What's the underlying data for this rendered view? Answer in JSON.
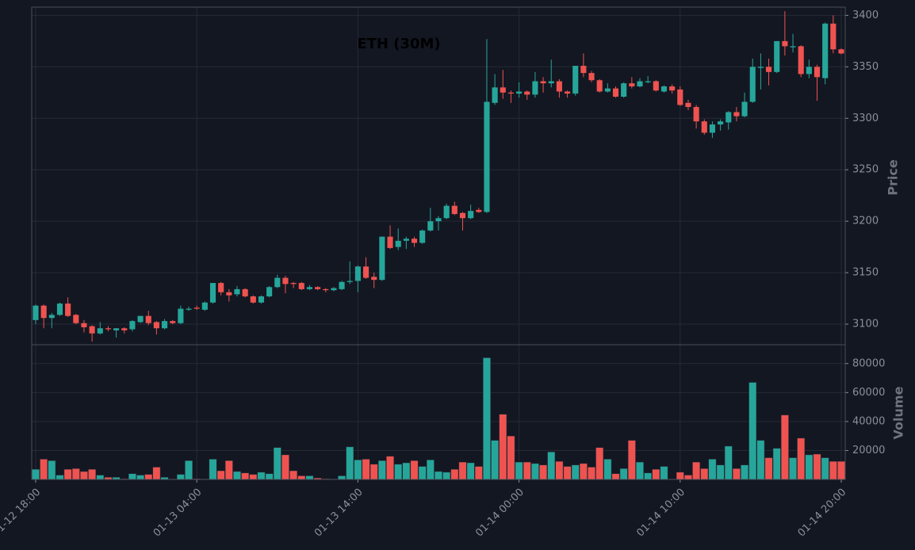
{
  "chart_data": {
    "type": "candlestick",
    "title": "ETH (30M)",
    "ylabel": "Price",
    "volume_ylabel": "Volume",
    "categories": [
      "01-12 18:00",
      null,
      null,
      null,
      null,
      null,
      null,
      null,
      null,
      null,
      null,
      null,
      null,
      null,
      null,
      null,
      null,
      null,
      null,
      null,
      "01-13 04:00",
      null,
      null,
      null,
      null,
      null,
      null,
      null,
      null,
      null,
      null,
      null,
      null,
      null,
      null,
      null,
      null,
      null,
      null,
      null,
      "01-13 14:00",
      null,
      null,
      null,
      null,
      null,
      null,
      null,
      null,
      null,
      null,
      null,
      null,
      null,
      null,
      null,
      null,
      null,
      null,
      null,
      "01-14 00:00",
      null,
      null,
      null,
      null,
      null,
      null,
      null,
      null,
      null,
      null,
      null,
      null,
      null,
      null,
      null,
      null,
      null,
      null,
      null,
      "01-14 10:00",
      null,
      null,
      null,
      null,
      null,
      null,
      null,
      null,
      null,
      null,
      null,
      null,
      null,
      null,
      null,
      null,
      null,
      null,
      null,
      "01-14 20:00"
    ],
    "open": [
      3104,
      3118,
      3106,
      3109,
      3120,
      3109,
      3101,
      3098,
      3091,
      3096,
      3094,
      3096,
      3095,
      3102,
      3108,
      3102,
      3096,
      3103,
      3101,
      3114,
      3116,
      3114,
      3121,
      3140,
      3131,
      3129,
      3134,
      3127,
      3121,
      3127,
      3136,
      3145,
      3140,
      3140,
      3134,
      3136,
      3134,
      3133,
      3134,
      3141,
      3142,
      3156,
      3146,
      3143,
      3185,
      3175,
      3181,
      3183,
      3179,
      3191,
      3200,
      3203,
      3215,
      3208,
      3203,
      3211,
      3209,
      3315,
      3330,
      3325,
      3324,
      3326,
      3323,
      3336,
      3334,
      3336,
      3326,
      3324,
      3351,
      3344,
      3337,
      3326,
      3329,
      3321,
      3334,
      3331,
      3335,
      3336,
      3326,
      3331,
      3328,
      3315,
      3311,
      3297,
      3286,
      3294,
      3296,
      3306,
      3302,
      3316,
      3349,
      3350,
      3345,
      3375,
      3369,
      3370,
      3343,
      3350,
      3339,
      3392,
      3367
    ],
    "high": [
      3119,
      3119,
      3111,
      3121,
      3126,
      3110,
      3104,
      3099,
      3102,
      3098,
      3096,
      3097,
      3104,
      3108,
      3113,
      3103,
      3105,
      3104,
      3118,
      3117,
      3118,
      3122,
      3140,
      3141,
      3134,
      3137,
      3135,
      3128,
      3128,
      3137,
      3148,
      3147,
      3141,
      3141,
      3138,
      3137,
      3135,
      3136,
      3142,
      3161,
      3157,
      3165,
      3150,
      3185,
      3196,
      3193,
      3185,
      3185,
      3192,
      3213,
      3205,
      3217,
      3219,
      3209,
      3216,
      3213,
      3377,
      3343,
      3347,
      3327,
      3335,
      3327,
      3345,
      3340,
      3357,
      3338,
      3327,
      3351,
      3363,
      3346,
      3338,
      3334,
      3331,
      3335,
      3340,
      3339,
      3341,
      3337,
      3332,
      3333,
      3331,
      3318,
      3313,
      3299,
      3297,
      3299,
      3307,
      3311,
      3325,
      3358,
      3363,
      3358,
      3375,
      3404,
      3382,
      3371,
      3357,
      3352,
      3393,
      3400,
      3368
    ],
    "low": [
      3100,
      3096,
      3096,
      3108,
      3107,
      3100,
      3092,
      3083,
      3090,
      3093,
      3087,
      3091,
      3093,
      3101,
      3099,
      3090,
      3095,
      3100,
      3100,
      3113,
      3114,
      3113,
      3120,
      3128,
      3122,
      3127,
      3126,
      3120,
      3120,
      3126,
      3135,
      3130,
      3135,
      3133,
      3133,
      3133,
      3131,
      3132,
      3133,
      3139,
      3131,
      3144,
      3135,
      3142,
      3173,
      3172,
      3173,
      3175,
      3178,
      3190,
      3191,
      3202,
      3206,
      3191,
      3202,
      3208,
      3208,
      3313,
      3319,
      3315,
      3320,
      3318,
      3320,
      3325,
      3330,
      3320,
      3320,
      3322,
      3340,
      3335,
      3325,
      3325,
      3320,
      3320,
      3329,
      3330,
      3334,
      3326,
      3325,
      3324,
      3312,
      3308,
      3290,
      3284,
      3281,
      3288,
      3289,
      3297,
      3301,
      3315,
      3328,
      3332,
      3344,
      3361,
      3364,
      3340,
      3339,
      3317,
      3333,
      3363,
      3362
    ],
    "close": [
      3118,
      3106,
      3109,
      3120,
      3108,
      3101,
      3097,
      3091,
      3096,
      3095,
      3096,
      3094,
      3103,
      3108,
      3101,
      3096,
      3103,
      3101,
      3115,
      3115,
      3115,
      3121,
      3140,
      3131,
      3128,
      3134,
      3127,
      3121,
      3127,
      3136,
      3145,
      3139,
      3139,
      3134,
      3136,
      3134,
      3133,
      3135,
      3141,
      3142,
      3156,
      3145,
      3143,
      3185,
      3174,
      3181,
      3183,
      3179,
      3191,
      3200,
      3203,
      3215,
      3207,
      3203,
      3210,
      3209,
      3316,
      3330,
      3325,
      3324,
      3326,
      3323,
      3336,
      3334,
      3336,
      3326,
      3324,
      3351,
      3344,
      3337,
      3326,
      3329,
      3321,
      3334,
      3331,
      3336,
      3336,
      3327,
      3331,
      3327,
      3313,
      3311,
      3297,
      3286,
      3294,
      3297,
      3306,
      3302,
      3316,
      3350,
      3350,
      3345,
      3375,
      3370,
      3370,
      3343,
      3350,
      3340,
      3392,
      3367,
      3363
    ],
    "volume": [
      7000,
      14000,
      13000,
      3000,
      7000,
      7500,
      5500,
      7000,
      3000,
      1500,
      1500,
      500,
      4000,
      3000,
      3500,
      8500,
      1500,
      300,
      3500,
      13000,
      500,
      300,
      14000,
      6000,
      13000,
      5500,
      4500,
      3500,
      5000,
      4000,
      22000,
      17000,
      6000,
      2500,
      2500,
      1000,
      500,
      300,
      2500,
      22500,
      13500,
      14000,
      10500,
      13000,
      16000,
      10500,
      11500,
      13000,
      9000,
      13500,
      5500,
      5000,
      7000,
      12000,
      11500,
      9000,
      84000,
      27000,
      45000,
      30000,
      12000,
      12000,
      11000,
      10000,
      19000,
      12500,
      9000,
      10000,
      11000,
      8500,
      22000,
      14000,
      4000,
      7500,
      27000,
      12000,
      4500,
      7000,
      9000,
      300,
      5000,
      3000,
      12000,
      7500,
      14000,
      10000,
      23000,
      7500,
      10000,
      67000,
      27000,
      15000,
      21500,
      44500,
      15000,
      28500,
      17000,
      17500,
      15000,
      12500,
      12500
    ],
    "ylim": [
      3080,
      3408
    ],
    "yticks": [
      3100,
      3150,
      3200,
      3250,
      3300,
      3350,
      3400
    ],
    "volume_ylim": [
      0,
      93000
    ],
    "volume_yticks": [
      20000,
      40000,
      60000,
      80000
    ],
    "up_color": "#26a69a",
    "down_color": "#ef5350",
    "grid": true
  }
}
